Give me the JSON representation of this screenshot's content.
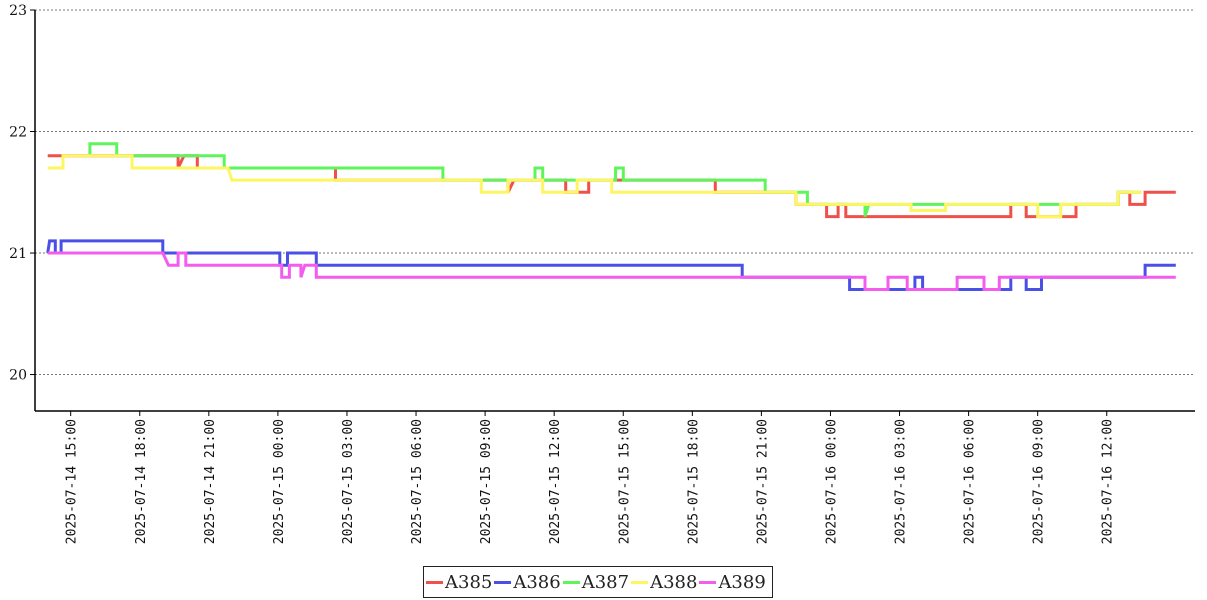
{
  "chart_data": {
    "type": "line",
    "title": "",
    "xlabel": "",
    "ylabel": "",
    "xlim": [
      "2025-07-14 13:27",
      "2025-07-16 15:50"
    ],
    "ylim": [
      19.7,
      23.0
    ],
    "y_ticks": [
      20,
      21,
      22,
      23
    ],
    "x_ticks": [
      "2025-07-14 15:00",
      "2025-07-14 18:00",
      "2025-07-14 21:00",
      "2025-07-15 00:00",
      "2025-07-15 03:00",
      "2025-07-15 06:00",
      "2025-07-15 09:00",
      "2025-07-15 12:00",
      "2025-07-15 15:00",
      "2025-07-15 18:00",
      "2025-07-15 21:00",
      "2025-07-16 00:00",
      "2025-07-16 03:00",
      "2025-07-16 06:00",
      "2025-07-16 09:00",
      "2025-07-16 12:00"
    ],
    "grid": "horizontal-dotted",
    "legend_position": "bottom-center",
    "series": [
      {
        "name": "A385",
        "color": "#f0504a",
        "points": [
          [
            "2025-07-14 14:00",
            21.8
          ],
          [
            "2025-07-14 19:40",
            21.8
          ],
          [
            "2025-07-14 19:40",
            21.7
          ],
          [
            "2025-07-14 19:55",
            21.8
          ],
          [
            "2025-07-14 20:30",
            21.8
          ],
          [
            "2025-07-14 20:30",
            21.7
          ],
          [
            "2025-07-15 02:30",
            21.7
          ],
          [
            "2025-07-15 02:30",
            21.6
          ],
          [
            "2025-07-15 10:00",
            21.6
          ],
          [
            "2025-07-15 10:00",
            21.5
          ],
          [
            "2025-07-15 10:15",
            21.6
          ],
          [
            "2025-07-15 12:30",
            21.6
          ],
          [
            "2025-07-15 12:30",
            21.5
          ],
          [
            "2025-07-15 13:30",
            21.5
          ],
          [
            "2025-07-15 13:30",
            21.6
          ],
          [
            "2025-07-15 19:00",
            21.6
          ],
          [
            "2025-07-15 19:00",
            21.5
          ],
          [
            "2025-07-15 22:30",
            21.5
          ],
          [
            "2025-07-15 22:30",
            21.4
          ],
          [
            "2025-07-15 23:50",
            21.4
          ],
          [
            "2025-07-15 23:50",
            21.3
          ],
          [
            "2025-07-16 00:20",
            21.3
          ],
          [
            "2025-07-16 00:20",
            21.4
          ],
          [
            "2025-07-16 00:40",
            21.4
          ],
          [
            "2025-07-16 00:40",
            21.3
          ],
          [
            "2025-07-16 07:50",
            21.3
          ],
          [
            "2025-07-16 07:50",
            21.4
          ],
          [
            "2025-07-16 08:30",
            21.4
          ],
          [
            "2025-07-16 08:30",
            21.3
          ],
          [
            "2025-07-16 10:40",
            21.3
          ],
          [
            "2025-07-16 10:40",
            21.4
          ],
          [
            "2025-07-16 12:30",
            21.4
          ],
          [
            "2025-07-16 12:30",
            21.5
          ],
          [
            "2025-07-16 13:00",
            21.5
          ],
          [
            "2025-07-16 13:00",
            21.4
          ],
          [
            "2025-07-16 13:40",
            21.4
          ],
          [
            "2025-07-16 13:40",
            21.5
          ],
          [
            "2025-07-16 15:00",
            21.5
          ]
        ]
      },
      {
        "name": "A386",
        "color": "#4a50e6",
        "points": [
          [
            "2025-07-14 14:00",
            21.0
          ],
          [
            "2025-07-14 14:05",
            21.1
          ],
          [
            "2025-07-14 14:20",
            21.1
          ],
          [
            "2025-07-14 14:20",
            21.0
          ],
          [
            "2025-07-14 14:35",
            21.0
          ],
          [
            "2025-07-14 14:35",
            21.1
          ],
          [
            "2025-07-14 19:00",
            21.1
          ],
          [
            "2025-07-14 19:00",
            21.0
          ],
          [
            "2025-07-15 00:05",
            21.0
          ],
          [
            "2025-07-15 00:05",
            20.9
          ],
          [
            "2025-07-15 00:25",
            20.9
          ],
          [
            "2025-07-15 00:25",
            21.0
          ],
          [
            "2025-07-15 01:40",
            21.0
          ],
          [
            "2025-07-15 01:40",
            20.9
          ],
          [
            "2025-07-15 20:10",
            20.9
          ],
          [
            "2025-07-15 20:10",
            20.8
          ],
          [
            "2025-07-16 00:50",
            20.8
          ],
          [
            "2025-07-16 00:50",
            20.7
          ],
          [
            "2025-07-16 03:40",
            20.7
          ],
          [
            "2025-07-16 03:40",
            20.8
          ],
          [
            "2025-07-16 04:00",
            20.8
          ],
          [
            "2025-07-16 04:00",
            20.7
          ],
          [
            "2025-07-16 07:50",
            20.7
          ],
          [
            "2025-07-16 07:50",
            20.8
          ],
          [
            "2025-07-16 08:30",
            20.8
          ],
          [
            "2025-07-16 08:30",
            20.7
          ],
          [
            "2025-07-16 09:10",
            20.7
          ],
          [
            "2025-07-16 09:10",
            20.8
          ],
          [
            "2025-07-16 13:40",
            20.8
          ],
          [
            "2025-07-16 13:40",
            20.9
          ],
          [
            "2025-07-16 15:00",
            20.9
          ]
        ]
      },
      {
        "name": "A387",
        "color": "#5ef55a",
        "points": [
          [
            "2025-07-14 15:50",
            21.8
          ],
          [
            "2025-07-14 15:50",
            21.9
          ],
          [
            "2025-07-14 17:00",
            21.9
          ],
          [
            "2025-07-14 17:00",
            21.8
          ],
          [
            "2025-07-14 20:30",
            21.8
          ],
          [
            "2025-07-14 21:40",
            21.8
          ],
          [
            "2025-07-14 21:40",
            21.7
          ],
          [
            "2025-07-15 02:30",
            21.7
          ],
          [
            "2025-07-15 07:10",
            21.7
          ],
          [
            "2025-07-15 07:10",
            21.6
          ],
          [
            "2025-07-15 11:10",
            21.6
          ],
          [
            "2025-07-15 11:10",
            21.7
          ],
          [
            "2025-07-15 11:30",
            21.7
          ],
          [
            "2025-07-15 11:30",
            21.6
          ],
          [
            "2025-07-15 14:40",
            21.6
          ],
          [
            "2025-07-15 14:40",
            21.7
          ],
          [
            "2025-07-15 15:00",
            21.7
          ],
          [
            "2025-07-15 15:00",
            21.6
          ],
          [
            "2025-07-15 20:30",
            21.6
          ],
          [
            "2025-07-15 21:10",
            21.6
          ],
          [
            "2025-07-15 21:10",
            21.5
          ],
          [
            "2025-07-15 23:00",
            21.5
          ],
          [
            "2025-07-15 23:00",
            21.4
          ],
          [
            "2025-07-16 01:30",
            21.4
          ],
          [
            "2025-07-16 01:30",
            21.3
          ],
          [
            "2025-07-16 01:40",
            21.4
          ],
          [
            "2025-07-16 12:30",
            21.4
          ],
          [
            "2025-07-16 12:30",
            21.5
          ],
          [
            "2025-07-16 13:30",
            21.5
          ]
        ]
      },
      {
        "name": "A388",
        "color": "#fdf660",
        "points": [
          [
            "2025-07-14 14:00",
            21.7
          ],
          [
            "2025-07-14 14:40",
            21.7
          ],
          [
            "2025-07-14 14:40",
            21.8
          ],
          [
            "2025-07-14 17:40",
            21.8
          ],
          [
            "2025-07-14 17:40",
            21.7
          ],
          [
            "2025-07-14 19:40",
            21.7
          ],
          [
            "2025-07-14 21:50",
            21.7
          ],
          [
            "2025-07-14 22:00",
            21.6
          ],
          [
            "2025-07-15 02:30",
            21.6
          ],
          [
            "2025-07-15 08:50",
            21.6
          ],
          [
            "2025-07-15 08:50",
            21.5
          ],
          [
            "2025-07-15 10:00",
            21.5
          ],
          [
            "2025-07-15 10:00",
            21.6
          ],
          [
            "2025-07-15 11:30",
            21.6
          ],
          [
            "2025-07-15 11:30",
            21.5
          ],
          [
            "2025-07-15 13:00",
            21.5
          ],
          [
            "2025-07-15 13:00",
            21.6
          ],
          [
            "2025-07-15 14:30",
            21.6
          ],
          [
            "2025-07-15 14:30",
            21.5
          ],
          [
            "2025-07-15 22:30",
            21.5
          ],
          [
            "2025-07-15 22:30",
            21.4
          ],
          [
            "2025-07-16 03:30",
            21.4
          ],
          [
            "2025-07-16 03:30",
            21.35
          ],
          [
            "2025-07-16 05:00",
            21.35
          ],
          [
            "2025-07-16 05:00",
            21.4
          ],
          [
            "2025-07-16 09:00",
            21.4
          ],
          [
            "2025-07-16 09:00",
            21.3
          ],
          [
            "2025-07-16 10:00",
            21.3
          ],
          [
            "2025-07-16 10:00",
            21.4
          ],
          [
            "2025-07-16 12:30",
            21.4
          ],
          [
            "2025-07-16 12:30",
            21.5
          ],
          [
            "2025-07-16 13:30",
            21.5
          ]
        ]
      },
      {
        "name": "A389",
        "color": "#f45cee",
        "points": [
          [
            "2025-07-14 14:00",
            21.0
          ],
          [
            "2025-07-14 19:00",
            21.0
          ],
          [
            "2025-07-14 19:15",
            20.9
          ],
          [
            "2025-07-14 19:40",
            20.9
          ],
          [
            "2025-07-14 19:40",
            21.0
          ],
          [
            "2025-07-14 20:00",
            21.0
          ],
          [
            "2025-07-14 20:00",
            20.9
          ],
          [
            "2025-07-15 00:10",
            20.9
          ],
          [
            "2025-07-15 00:10",
            20.8
          ],
          [
            "2025-07-15 00:30",
            20.8
          ],
          [
            "2025-07-15 00:30",
            20.9
          ],
          [
            "2025-07-15 01:00",
            20.9
          ],
          [
            "2025-07-15 01:00",
            20.8
          ],
          [
            "2025-07-15 01:10",
            20.9
          ],
          [
            "2025-07-15 01:40",
            20.9
          ],
          [
            "2025-07-15 01:40",
            20.8
          ],
          [
            "2025-07-16 01:30",
            20.8
          ],
          [
            "2025-07-16 01:30",
            20.7
          ],
          [
            "2025-07-16 02:30",
            20.7
          ],
          [
            "2025-07-16 02:30",
            20.8
          ],
          [
            "2025-07-16 03:20",
            20.8
          ],
          [
            "2025-07-16 03:20",
            20.7
          ],
          [
            "2025-07-16 05:30",
            20.7
          ],
          [
            "2025-07-16 05:30",
            20.8
          ],
          [
            "2025-07-16 06:40",
            20.8
          ],
          [
            "2025-07-16 06:40",
            20.7
          ],
          [
            "2025-07-16 07:20",
            20.7
          ],
          [
            "2025-07-16 07:20",
            20.8
          ],
          [
            "2025-07-16 15:00",
            20.8
          ]
        ]
      }
    ]
  }
}
